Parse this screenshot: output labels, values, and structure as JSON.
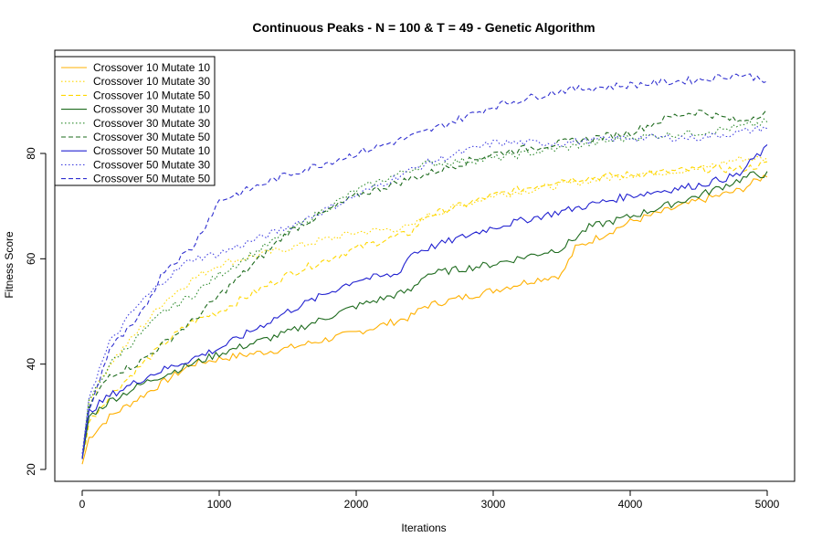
{
  "chart_data": {
    "type": "line",
    "title": "Continuous Peaks - N = 100 & T = 49 - Genetic Algorithm",
    "xlabel": "Iterations",
    "ylabel": "Fitness Score",
    "xlim": [
      0,
      5000
    ],
    "ylim": [
      20,
      96
    ],
    "xticks": [
      0,
      1000,
      2000,
      3000,
      4000,
      5000
    ],
    "yticks": [
      20,
      40,
      60,
      80
    ],
    "grid": false,
    "legend": "top-left",
    "series": [
      {
        "name": "Crossover 10 Mutate 10",
        "color": "#FFB000",
        "dash": "solid",
        "x": [
          0,
          50,
          200,
          500,
          800,
          1000,
          1500,
          2000,
          2400,
          2500,
          3000,
          3300,
          3500,
          3600,
          4000,
          4500,
          4800,
          5000
        ],
        "y": [
          21,
          26,
          30,
          35,
          40,
          41,
          43,
          46,
          49,
          51,
          54,
          56,
          57,
          62,
          67,
          71,
          73,
          76
        ]
      },
      {
        "name": "Crossover 10 Mutate 30",
        "color": "#FFD700",
        "dash": "dotted",
        "x": [
          0,
          50,
          200,
          400,
          600,
          800,
          1000,
          1500,
          2000,
          2400,
          2500,
          3000,
          3500,
          4000,
          4500,
          4800,
          5000
        ],
        "y": [
          22,
          33,
          40,
          46,
          52,
          56,
          59,
          62,
          65,
          66,
          68,
          72,
          74,
          76,
          77,
          79,
          79
        ]
      },
      {
        "name": "Crossover 10 Mutate 50",
        "color": "#FFD700",
        "dash": "dashed",
        "x": [
          0,
          50,
          200,
          400,
          600,
          800,
          1000,
          1500,
          2000,
          2400,
          2500,
          3000,
          3500,
          4000,
          4500,
          4800,
          5000
        ],
        "y": [
          22,
          29,
          34,
          39,
          44,
          48,
          50,
          57,
          62,
          65,
          68,
          72,
          75,
          76,
          77,
          77,
          78
        ]
      },
      {
        "name": "Crossover 30 Mutate 10",
        "color": "#1E6B1E",
        "dash": "solid",
        "x": [
          0,
          50,
          200,
          500,
          800,
          1000,
          1500,
          2000,
          2400,
          2500,
          3000,
          3500,
          3700,
          4000,
          4500,
          4900,
          5000
        ],
        "y": [
          22,
          30,
          33,
          37,
          40,
          42,
          46,
          51,
          54,
          57,
          59,
          62,
          66,
          68,
          72,
          76,
          76
        ]
      },
      {
        "name": "Crossover 30 Mutate 30",
        "color": "#2E8B2E",
        "dash": "dotted",
        "x": [
          0,
          50,
          200,
          400,
          600,
          800,
          1000,
          1500,
          2000,
          2500,
          3000,
          3500,
          4000,
          4500,
          4800,
          5000
        ],
        "y": [
          22,
          33,
          40,
          45,
          50,
          53,
          57,
          65,
          73,
          78,
          79,
          81,
          83,
          84,
          85,
          86
        ]
      },
      {
        "name": "Crossover 30 Mutate 50",
        "color": "#1E6B1E",
        "dash": "dashed",
        "x": [
          0,
          50,
          200,
          400,
          600,
          800,
          1000,
          1500,
          2000,
          2500,
          3000,
          3500,
          4000,
          4300,
          4500,
          4800,
          5000
        ],
        "y": [
          22,
          32,
          38,
          40,
          44,
          48,
          53,
          65,
          72,
          76,
          80,
          82,
          84,
          87,
          88,
          86,
          88
        ]
      },
      {
        "name": "Crossover 50 Mutate 10",
        "color": "#2020D0",
        "dash": "solid",
        "x": [
          0,
          50,
          200,
          500,
          800,
          1000,
          1500,
          2000,
          2300,
          2400,
          3000,
          3500,
          4000,
          4500,
          4800,
          4900,
          5000
        ],
        "y": [
          22,
          31,
          34,
          38,
          41,
          43,
          50,
          56,
          57,
          61,
          66,
          69,
          72,
          74,
          76,
          79,
          81
        ]
      },
      {
        "name": "Crossover 50 Mutate 30",
        "color": "#4040E0",
        "dash": "dotted",
        "x": [
          0,
          50,
          200,
          400,
          600,
          800,
          1000,
          1500,
          2000,
          2500,
          3000,
          3500,
          4000,
          4500,
          4800,
          5000
        ],
        "y": [
          23,
          34,
          44,
          51,
          56,
          60,
          61,
          66,
          72,
          78,
          82,
          82,
          83,
          83,
          84,
          85
        ]
      },
      {
        "name": "Crossover 50 Mutate 50",
        "color": "#3030D0",
        "dash": "dashed",
        "x": [
          0,
          50,
          200,
          400,
          600,
          800,
          1000,
          1500,
          2000,
          2500,
          3000,
          3500,
          4000,
          4500,
          4800,
          5000
        ],
        "y": [
          22,
          31,
          43,
          48,
          58,
          62,
          71,
          76,
          80,
          84,
          89,
          92,
          93,
          94,
          95,
          94
        ]
      }
    ]
  }
}
